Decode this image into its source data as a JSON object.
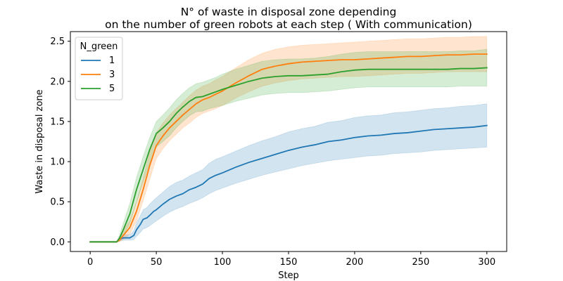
{
  "chart_data": {
    "type": "line",
    "title": [
      "N° of waste in disposal zone depending",
      "on the number of green robots at each step ( With communication)"
    ],
    "xlabel": "Step",
    "ylabel": "Waste in disposal zone",
    "xlim": [
      -15,
      315
    ],
    "ylim": [
      -0.12,
      2.62
    ],
    "xticks": [
      0,
      50,
      100,
      150,
      200,
      250,
      300
    ],
    "xtick_labels": [
      "0",
      "50",
      "100",
      "150",
      "200",
      "250",
      "300"
    ],
    "yticks": [
      0.0,
      0.5,
      1.0,
      1.5,
      2.0,
      2.5
    ],
    "ytick_labels": [
      "0.0",
      "0.5",
      "1.0",
      "1.5",
      "2.0",
      "2.5"
    ],
    "grid": false,
    "legend": {
      "title": "N_green",
      "placement": "top-left"
    },
    "series": [
      {
        "name": "1",
        "color": "#1f77b4",
        "x": [
          0,
          20,
          22,
          25,
          30,
          33,
          35,
          38,
          40,
          43,
          45,
          48,
          50,
          55,
          60,
          65,
          70,
          75,
          80,
          85,
          90,
          95,
          100,
          110,
          120,
          130,
          140,
          150,
          160,
          170,
          180,
          190,
          200,
          210,
          220,
          230,
          240,
          250,
          260,
          270,
          280,
          290,
          300
        ],
        "y": [
          0.0,
          0.0,
          0.03,
          0.05,
          0.05,
          0.08,
          0.15,
          0.22,
          0.28,
          0.3,
          0.33,
          0.38,
          0.4,
          0.47,
          0.53,
          0.57,
          0.6,
          0.65,
          0.68,
          0.72,
          0.79,
          0.83,
          0.86,
          0.93,
          0.99,
          1.04,
          1.09,
          1.14,
          1.18,
          1.21,
          1.25,
          1.27,
          1.3,
          1.32,
          1.33,
          1.35,
          1.36,
          1.38,
          1.4,
          1.41,
          1.42,
          1.43,
          1.45
        ],
        "lower": [
          0.0,
          0.0,
          0.01,
          0.02,
          0.02,
          0.03,
          0.07,
          0.12,
          0.16,
          0.18,
          0.2,
          0.24,
          0.26,
          0.32,
          0.37,
          0.41,
          0.44,
          0.48,
          0.51,
          0.55,
          0.6,
          0.64,
          0.67,
          0.73,
          0.78,
          0.83,
          0.87,
          0.91,
          0.95,
          0.98,
          1.01,
          1.03,
          1.05,
          1.07,
          1.08,
          1.1,
          1.11,
          1.12,
          1.14,
          1.15,
          1.16,
          1.17,
          1.18
        ],
        "upper": [
          0.0,
          0.0,
          0.06,
          0.09,
          0.09,
          0.14,
          0.24,
          0.33,
          0.4,
          0.43,
          0.47,
          0.52,
          0.55,
          0.62,
          0.69,
          0.74,
          0.77,
          0.82,
          0.86,
          0.9,
          0.98,
          1.03,
          1.06,
          1.13,
          1.2,
          1.26,
          1.31,
          1.37,
          1.41,
          1.44,
          1.49,
          1.51,
          1.55,
          1.57,
          1.58,
          1.61,
          1.62,
          1.64,
          1.66,
          1.67,
          1.69,
          1.7,
          1.72
        ]
      },
      {
        "name": "3",
        "color": "#ff7f0e",
        "x": [
          0,
          20,
          22,
          25,
          30,
          35,
          40,
          45,
          50,
          55,
          60,
          65,
          70,
          75,
          80,
          85,
          90,
          95,
          100,
          110,
          120,
          130,
          140,
          150,
          160,
          170,
          180,
          190,
          200,
          210,
          220,
          230,
          240,
          250,
          260,
          270,
          280,
          290,
          300
        ],
        "y": [
          0.0,
          0.0,
          0.02,
          0.08,
          0.18,
          0.38,
          0.65,
          0.95,
          1.2,
          1.32,
          1.42,
          1.5,
          1.58,
          1.65,
          1.72,
          1.77,
          1.8,
          1.84,
          1.88,
          1.98,
          2.07,
          2.15,
          2.19,
          2.22,
          2.24,
          2.25,
          2.26,
          2.27,
          2.27,
          2.28,
          2.29,
          2.3,
          2.31,
          2.31,
          2.32,
          2.33,
          2.33,
          2.34,
          2.34
        ],
        "lower": [
          0.0,
          0.0,
          0.0,
          0.03,
          0.1,
          0.26,
          0.51,
          0.78,
          1.04,
          1.16,
          1.26,
          1.34,
          1.42,
          1.48,
          1.55,
          1.6,
          1.63,
          1.66,
          1.7,
          1.79,
          1.87,
          1.94,
          1.98,
          2.01,
          2.03,
          2.04,
          2.05,
          2.06,
          2.06,
          2.07,
          2.08,
          2.09,
          2.1,
          2.1,
          2.11,
          2.12,
          2.12,
          2.12,
          2.12
        ],
        "upper": [
          0.0,
          0.0,
          0.05,
          0.14,
          0.27,
          0.5,
          0.79,
          1.12,
          1.36,
          1.48,
          1.58,
          1.66,
          1.74,
          1.82,
          1.89,
          1.94,
          1.97,
          2.02,
          2.06,
          2.17,
          2.27,
          2.35,
          2.4,
          2.43,
          2.45,
          2.46,
          2.47,
          2.48,
          2.49,
          2.5,
          2.51,
          2.52,
          2.53,
          2.53,
          2.54,
          2.55,
          2.55,
          2.56,
          2.56
        ]
      },
      {
        "name": "5",
        "color": "#2ca02c",
        "x": [
          0,
          20,
          22,
          25,
          30,
          35,
          40,
          45,
          50,
          55,
          60,
          65,
          70,
          75,
          80,
          85,
          90,
          95,
          100,
          110,
          120,
          130,
          140,
          150,
          160,
          170,
          180,
          190,
          200,
          210,
          220,
          230,
          240,
          250,
          260,
          270,
          280,
          290,
          300
        ],
        "y": [
          0.0,
          0.0,
          0.04,
          0.15,
          0.35,
          0.65,
          0.9,
          1.15,
          1.35,
          1.42,
          1.5,
          1.6,
          1.68,
          1.75,
          1.8,
          1.81,
          1.84,
          1.87,
          1.9,
          1.95,
          2.0,
          2.04,
          2.06,
          2.07,
          2.07,
          2.08,
          2.09,
          2.12,
          2.14,
          2.15,
          2.15,
          2.15,
          2.15,
          2.15,
          2.15,
          2.15,
          2.16,
          2.16,
          2.17
        ],
        "lower": [
          0.0,
          0.0,
          0.01,
          0.08,
          0.23,
          0.49,
          0.74,
          0.98,
          1.18,
          1.25,
          1.32,
          1.42,
          1.5,
          1.57,
          1.62,
          1.63,
          1.66,
          1.68,
          1.7,
          1.75,
          1.79,
          1.83,
          1.85,
          1.86,
          1.86,
          1.87,
          1.88,
          1.9,
          1.92,
          1.93,
          1.93,
          1.93,
          1.93,
          1.93,
          1.93,
          1.93,
          1.94,
          1.94,
          1.94
        ],
        "upper": [
          0.0,
          0.0,
          0.08,
          0.23,
          0.48,
          0.8,
          1.06,
          1.3,
          1.5,
          1.58,
          1.67,
          1.77,
          1.85,
          1.92,
          1.97,
          1.99,
          2.02,
          2.05,
          2.09,
          2.15,
          2.2,
          2.25,
          2.27,
          2.28,
          2.28,
          2.29,
          2.31,
          2.34,
          2.36,
          2.37,
          2.37,
          2.37,
          2.37,
          2.37,
          2.37,
          2.37,
          2.38,
          2.38,
          2.4
        ]
      }
    ]
  }
}
